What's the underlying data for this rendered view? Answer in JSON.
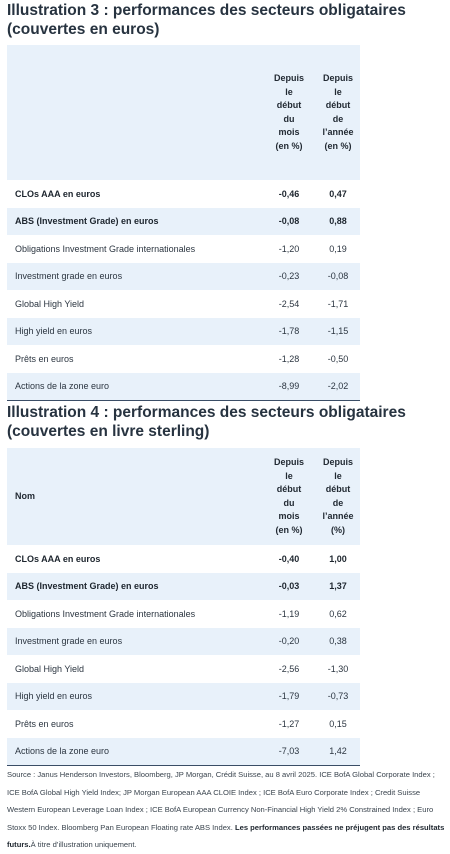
{
  "illustration3": {
    "title": "Illustration 3 : performances des secteurs obligataires (couvertes en euros)",
    "header": {
      "name": "",
      "month": [
        "Depuis",
        "le",
        "début",
        "du",
        "mois",
        "(en %)"
      ],
      "year": [
        "Depuis",
        "le",
        "début",
        "de",
        "l’année",
        "(en %)"
      ]
    },
    "rows": [
      {
        "name": "CLOs AAA en euros",
        "month": "-0,46",
        "year": "0,47"
      },
      {
        "name": "ABS (Investment Grade) en euros",
        "month": "-0,08",
        "year": "0,88"
      },
      {
        "name": "Obligations Investment Grade internationales",
        "month": "-1,20",
        "year": "0,19"
      },
      {
        "name": "Investment grade en euros",
        "month": "-0,23",
        "year": "-0,08"
      },
      {
        "name": "Global High Yield",
        "month": "-2,54",
        "year": "-1,71"
      },
      {
        "name": "High yield en euros",
        "month": "-1,78",
        "year": "-1,15"
      },
      {
        "name": "Prêts en euros",
        "month": "-1,28",
        "year": "-0,50"
      },
      {
        "name": "Actions de la zone euro",
        "month": "-8,99",
        "year": "-2,02"
      }
    ]
  },
  "illustration4": {
    "title": "Illustration 4 : performances des secteurs obligataires (couvertes en livre sterling)",
    "header": {
      "name": "Nom",
      "month": [
        "Depuis",
        "le",
        "début",
        "du",
        "mois",
        "(en %)"
      ],
      "year": [
        "Depuis",
        "le",
        "début",
        "de",
        "l’année",
        "(%)"
      ]
    },
    "rows": [
      {
        "name": "CLOs AAA en euros",
        "month": "-0,40",
        "year": "1,00"
      },
      {
        "name": "ABS (Investment Grade) en euros",
        "month": "-0,03",
        "year": "1,37"
      },
      {
        "name": "Obligations Investment Grade internationales",
        "month": "-1,19",
        "year": "0,62"
      },
      {
        "name": "Investment grade en euros",
        "month": "-0,20",
        "year": "0,38"
      },
      {
        "name": "Global High Yield",
        "month": "-2,56",
        "year": "-1,30"
      },
      {
        "name": "High yield en euros",
        "month": "-1,79",
        "year": "-0,73"
      },
      {
        "name": "Prêts en euros",
        "month": "-1,27",
        "year": "0,15"
      },
      {
        "name": "Actions de la zone euro",
        "month": "-7,03",
        "year": "1,42"
      }
    ]
  },
  "source": {
    "text": "Source : Janus Henderson Investors, Bloomberg, JP Morgan, Crédit Suisse, au 8 avril 2025. ICE BofA Global Corporate Index ; ICE BofA Global High Yield Index; JP Morgan European AAA CLOIE Index ; ICE BofA Euro Corporate Index ; Credit Suisse Western European Leverage Loan Index ; ICE BofA European Currency Non-Financial High Yield 2% Constrained Index ; Euro Stoxx 50 Index. Bloomberg Pan European Floating rate ABS Index. ",
    "bold": "Les performances passées ne préjugent pas des résultats futurs.",
    "tail": "À titre d’illustration uniquement."
  }
}
